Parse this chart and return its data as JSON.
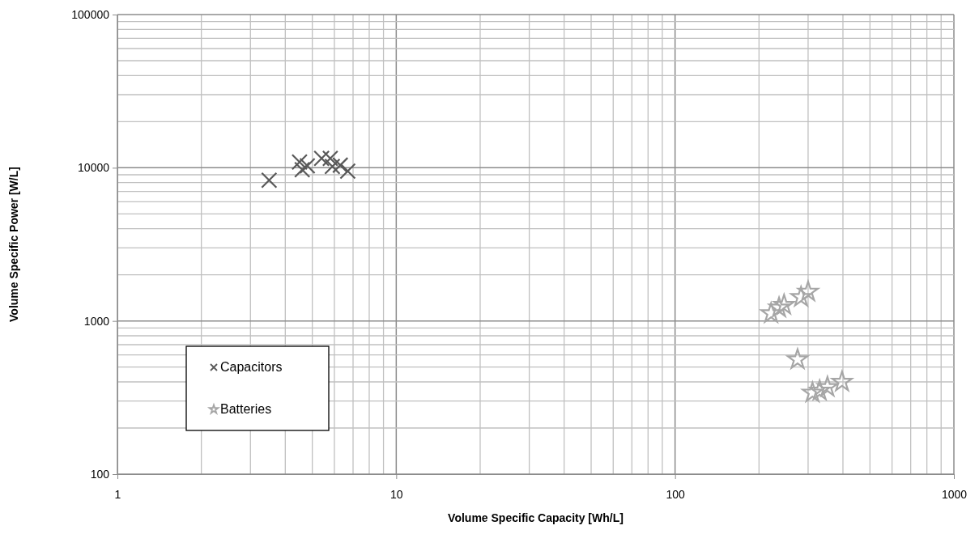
{
  "chart_data": {
    "type": "scatter",
    "xlabel": "Volume Specific Capacity [Wh/L]",
    "ylabel": "Volume Specific Power [W/L]",
    "log": "xy",
    "grid": true,
    "legend": "bottom left",
    "xlim": [
      1,
      1000
    ],
    "xticks": [
      1,
      10,
      100,
      1000
    ],
    "ylim": [
      100,
      100000
    ],
    "yticks": [
      100,
      1000,
      10000,
      100000
    ],
    "series": [
      {
        "name": "Capacitors",
        "color": "#595959",
        "marker": "cross",
        "x": [
          3.5,
          4.5,
          4.6,
          4.8,
          5.4,
          5.8,
          5.9,
          6.3,
          6.7
        ],
        "values": [
          8300,
          10900,
          9700,
          10300,
          11500,
          11500,
          10200,
          10400,
          9500
        ]
      },
      {
        "name": "Batteries",
        "color": "#a6a6a6",
        "marker": "star",
        "x": [
          221,
          236,
          246,
          283,
          300,
          275,
          311,
          330,
          352,
          397
        ],
        "values": [
          1120,
          1220,
          1270,
          1430,
          1550,
          560,
          340,
          350,
          370,
          400
        ]
      }
    ]
  }
}
